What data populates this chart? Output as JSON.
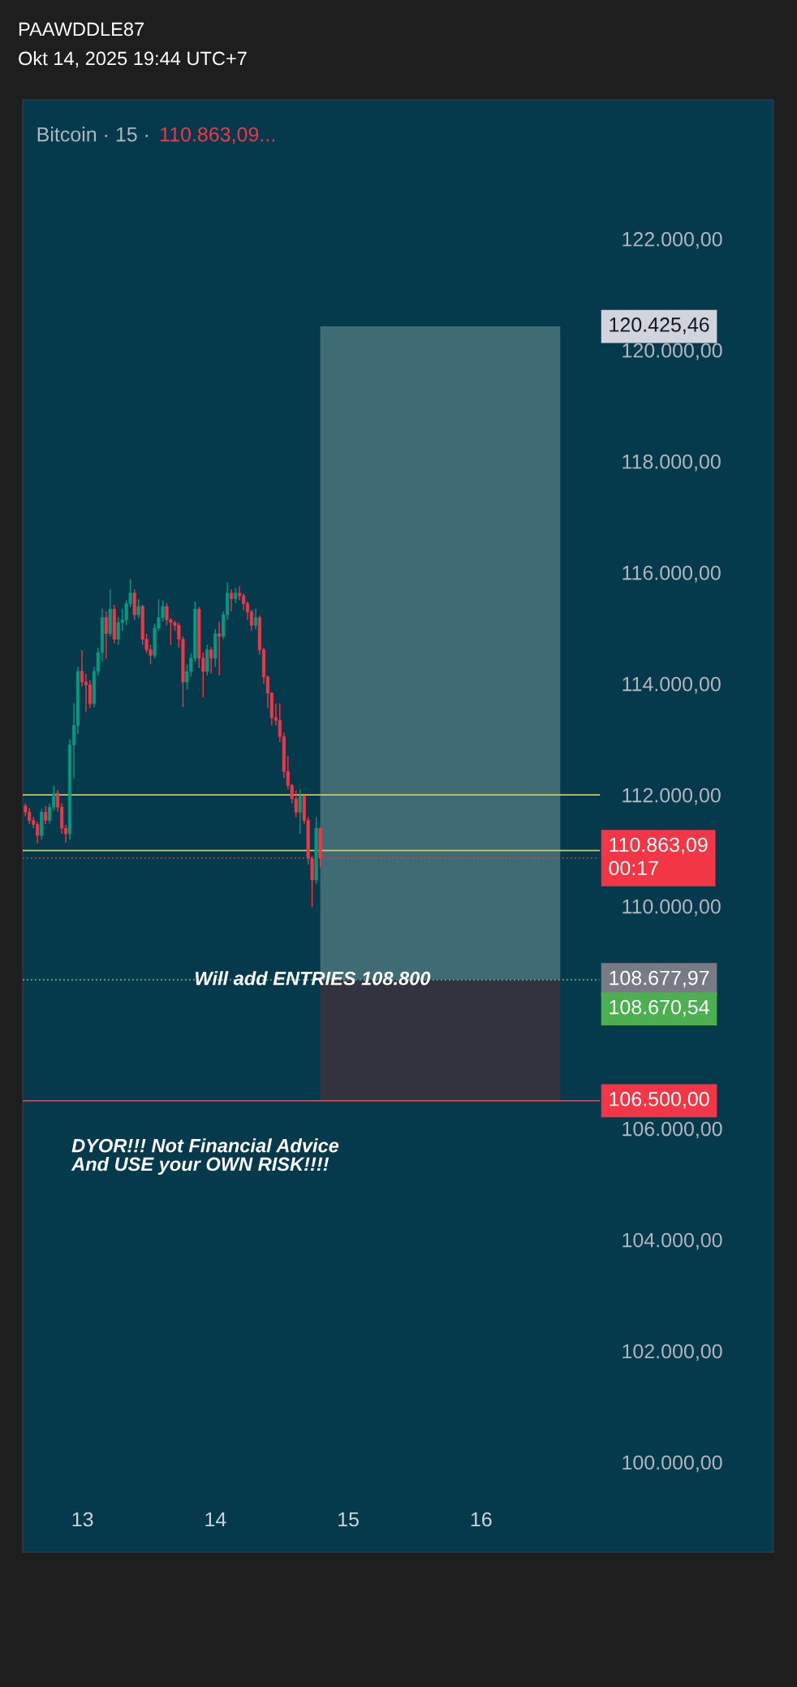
{
  "chart_data": {
    "type": "candlestick",
    "title": "Bitcoin · 15 ·",
    "subtitle": "110.863,09...",
    "x": [
      12.57,
      12.6,
      12.631,
      12.661,
      12.692,
      12.722,
      12.752,
      12.783,
      12.813,
      12.844,
      12.874,
      12.904,
      12.935,
      12.965,
      12.996,
      13.026,
      13.056,
      13.087,
      13.117,
      13.148,
      13.178,
      13.208,
      13.239,
      13.269,
      13.3,
      13.33,
      13.36,
      13.391,
      13.421,
      13.452,
      13.482,
      13.512,
      13.543,
      13.573,
      13.604,
      13.634,
      13.664,
      13.695,
      13.725,
      13.756,
      13.786,
      13.816,
      13.847,
      13.877,
      13.908,
      13.938,
      13.968,
      13.999,
      14.029,
      14.06,
      14.09,
      14.12,
      14.151,
      14.181,
      14.212,
      14.242,
      14.272,
      14.303,
      14.333,
      14.364,
      14.394,
      14.424,
      14.455,
      14.485,
      14.516,
      14.546,
      14.576,
      14.607,
      14.637,
      14.668,
      14.698,
      14.728,
      14.759,
      14.789
    ],
    "ohlc": [
      [
        111800,
        111850,
        111620,
        111690
      ],
      [
        111690,
        111760,
        111480,
        111540
      ],
      [
        111540,
        111600,
        111400,
        111470
      ],
      [
        111470,
        111520,
        111130,
        111270
      ],
      [
        111270,
        111750,
        111200,
        111690
      ],
      [
        111690,
        111800,
        111470,
        111540
      ],
      [
        111540,
        111850,
        111480,
        111780
      ],
      [
        111780,
        112170,
        111720,
        112030
      ],
      [
        112030,
        112090,
        111700,
        111780
      ],
      [
        111780,
        111850,
        111300,
        111400
      ],
      [
        111400,
        111460,
        111140,
        111300
      ],
      [
        111300,
        113000,
        111200,
        112900
      ],
      [
        112900,
        113650,
        112300,
        113250
      ],
      [
        113250,
        114300,
        113100,
        114220
      ],
      [
        114220,
        114600,
        113950,
        114030
      ],
      [
        114030,
        114180,
        113500,
        113980
      ],
      [
        113980,
        114060,
        113560,
        113640
      ],
      [
        113640,
        114300,
        113580,
        114220
      ],
      [
        114220,
        114650,
        114150,
        114560
      ],
      [
        114560,
        115350,
        114400,
        115190
      ],
      [
        115190,
        115300,
        114450,
        114900
      ],
      [
        114900,
        115700,
        114850,
        115340
      ],
      [
        115340,
        115420,
        114720,
        114800
      ],
      [
        114800,
        115200,
        114700,
        115100
      ],
      [
        115100,
        115350,
        114950,
        115150
      ],
      [
        115150,
        115500,
        115050,
        115440
      ],
      [
        115440,
        115880,
        115380,
        115630
      ],
      [
        115630,
        115700,
        115150,
        115240
      ],
      [
        115240,
        115520,
        115180,
        115390
      ],
      [
        115390,
        115420,
        114700,
        114800
      ],
      [
        114800,
        114900,
        114550,
        114610
      ],
      [
        114610,
        114700,
        114350,
        114510
      ],
      [
        114510,
        115080,
        114460,
        115000
      ],
      [
        115000,
        115520,
        114950,
        115190
      ],
      [
        115190,
        115500,
        115120,
        115390
      ],
      [
        115390,
        115450,
        115050,
        115150
      ],
      [
        115150,
        115180,
        114700,
        115100
      ],
      [
        115100,
        115130,
        114950,
        115050
      ],
      [
        115050,
        115100,
        114650,
        114800
      ],
      [
        114800,
        114850,
        113580,
        114030
      ],
      [
        114030,
        114350,
        113900,
        114220
      ],
      [
        114220,
        114550,
        114130,
        114460
      ],
      [
        114460,
        115480,
        114400,
        115340
      ],
      [
        115340,
        115380,
        114280,
        114460
      ],
      [
        114460,
        114560,
        113750,
        114220
      ],
      [
        114220,
        114700,
        114150,
        114610
      ],
      [
        114610,
        114660,
        114180,
        114460
      ],
      [
        114460,
        114980,
        114300,
        114900
      ],
      [
        114900,
        115120,
        114150,
        114850
      ],
      [
        114850,
        115300,
        114800,
        115240
      ],
      [
        115240,
        115820,
        115150,
        115630
      ],
      [
        115630,
        115700,
        115300,
        115530
      ],
      [
        115530,
        115720,
        115450,
        115630
      ],
      [
        115630,
        115750,
        115500,
        115580
      ],
      [
        115580,
        115620,
        115320,
        115440
      ],
      [
        115440,
        115480,
        115150,
        115290
      ],
      [
        115290,
        115330,
        114950,
        115050
      ],
      [
        115050,
        115350,
        114980,
        115190
      ],
      [
        115190,
        115230,
        114520,
        114610
      ],
      [
        114610,
        114650,
        114000,
        114120
      ],
      [
        114120,
        114150,
        113560,
        113830
      ],
      [
        113830,
        113850,
        113250,
        113390
      ],
      [
        113390,
        113640,
        113250,
        113340
      ],
      [
        113340,
        113650,
        112950,
        113050
      ],
      [
        113050,
        113120,
        112300,
        112420
      ],
      [
        112420,
        112700,
        112100,
        112170
      ],
      [
        112170,
        112200,
        111850,
        111930
      ],
      [
        111930,
        112080,
        111600,
        111690
      ],
      [
        111690,
        112100,
        111300,
        111980
      ],
      [
        111980,
        112000,
        111480,
        111540
      ],
      [
        111540,
        111600,
        110750,
        110860
      ],
      [
        110860,
        110900,
        109980,
        110470
      ],
      [
        110470,
        111600,
        110400,
        111400
      ],
      [
        111400,
        111420,
        110700,
        110863.09
      ]
    ],
    "colors": [
      "#f23645",
      "#f23645",
      "#f23645",
      "#f23645",
      "#089981",
      "#f23645",
      "#089981",
      "#089981",
      "#f23645",
      "#f23645",
      "#f23645",
      "#089981",
      "#089981",
      "#089981",
      "#f23645",
      "#f23645",
      "#f23645",
      "#089981",
      "#089981",
      "#089981",
      "#f23645",
      "#089981",
      "#f23645",
      "#089981",
      "#089981",
      "#089981",
      "#089981",
      "#f23645",
      "#089981",
      "#f23645",
      "#f23645",
      "#f23645",
      "#089981",
      "#089981",
      "#089981",
      "#f23645",
      "#f23645",
      "#f23645",
      "#f23645",
      "#f23645",
      "#089981",
      "#089981",
      "#089981",
      "#f23645",
      "#f23645",
      "#089981",
      "#f23645",
      "#089981",
      "#f23645",
      "#089981",
      "#089981",
      "#f23645",
      "#089981",
      "#f23645",
      "#f23645",
      "#f23645",
      "#f23645",
      "#089981",
      "#f23645",
      "#f23645",
      "#f23645",
      "#f23645",
      "#f23645",
      "#f23645",
      "#f23645",
      "#f23645",
      "#f23645",
      "#f23645",
      "#089981",
      "#f23645",
      "#f23645",
      "#f23645",
      "#089981",
      "#f23645"
    ],
    "xlim": [
      12.55,
      18.2
    ],
    "xticks": [
      13,
      14,
      15,
      16
    ],
    "ylim": [
      98380,
      124500
    ],
    "yticks": [
      {
        "value": 100000,
        "label": "100.000,00"
      },
      {
        "value": 102000,
        "label": "102.000,00"
      },
      {
        "value": 104000,
        "label": "104.000,00"
      },
      {
        "value": 106000,
        "label": "106.000,00"
      },
      {
        "value": 110000,
        "label": "110.000,00"
      },
      {
        "value": 112000,
        "label": "112.000,00"
      },
      {
        "value": 114000,
        "label": "114.000,00"
      },
      {
        "value": 116000,
        "label": "116.000,00"
      },
      {
        "value": 118000,
        "label": "118.000,00"
      },
      {
        "value": 120000,
        "label": "120.000,00"
      },
      {
        "value": 122000,
        "label": "122.000,00"
      }
    ],
    "bands": [
      {
        "axis": "y",
        "from": 108677.97,
        "to": 120425.46,
        "color": "#3f6b74"
      },
      {
        "axis": "y",
        "from": 106500,
        "to": 108677.97,
        "color": "#33323f"
      }
    ],
    "ref_lines": [
      {
        "axis": "y",
        "value": 112000,
        "color": "#d4c94a"
      },
      {
        "axis": "y",
        "value": 111000,
        "color": "#d4c94a"
      },
      {
        "axis": "y",
        "value": 110863.09,
        "label": "110.863,09\n00:17",
        "color": "#f23645",
        "line_style": "dotted"
      },
      {
        "axis": "y",
        "value": 108677.97,
        "label": "108.677,97",
        "color": "#787b86",
        "line_style": "dotted"
      },
      {
        "axis": "y",
        "value": 108670.54,
        "label": "108.670,54",
        "color": "#4caf50",
        "line_style": "dotted"
      },
      {
        "axis": "y",
        "value": 106500,
        "label": "106.500,00",
        "color": "#f23645"
      }
    ],
    "annotations": [
      "PAAWDDLE87",
      "Okt 14, 2025 19:44 UTC+7",
      "120.425,46",
      {
        "text": "Will add ENTRIES 108.800",
        "x": 14.73,
        "y": 108670.54
      },
      "DYOR!!! Not Financial Advice\nAnd USE your OWN RISK!!!!"
    ]
  }
}
